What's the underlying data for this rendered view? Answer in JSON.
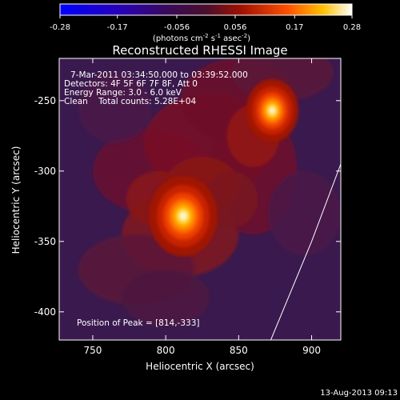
{
  "chart_data": {
    "type": "heatmap",
    "title": "Reconstructed RHESSI Image",
    "xlabel": "Heliocentric X (arcsec)",
    "ylabel": "Heliocentric Y (arcsec)",
    "xlim": [
      727,
      920
    ],
    "ylim": [
      -420,
      -220
    ],
    "xticks": [
      "750",
      "800",
      "850",
      "900"
    ],
    "yticks": [
      "-250",
      "-300",
      "-350",
      "-400"
    ],
    "colorbar": {
      "range": [
        -0.28,
        0.28
      ],
      "ticks": [
        "-0.28",
        "-0.17",
        "-0.056",
        "0.056",
        "0.17",
        "0.28"
      ],
      "unit_main": "(photons cm",
      "unit_sup1": "-2",
      "unit_mid": " s",
      "unit_sup2": "-1",
      "unit_mid2": " asec",
      "unit_sup3": "-2",
      "unit_end": ")"
    },
    "annotations": {
      "time_range": "7-Mar-2011 03:34:50.000 to 03:39:52.000",
      "detectors": "Detectors: 4F 5F 6F 7F 8F, Att 0",
      "energy": "Energy Range: 3.0 - 6.0 keV",
      "clean": "Clean    Total counts: 5.28E+04",
      "peak": "Position of Peak = [814,-333]"
    },
    "sources": [
      {
        "x": 812,
        "y": -332,
        "peak": 0.28,
        "sx": 9,
        "sy": 11
      },
      {
        "x": 873,
        "y": -257,
        "peak": 0.24,
        "sx": 8,
        "sy": 10
      }
    ],
    "limb_line": [
      [
        872,
        -420
      ],
      [
        900,
        -350
      ],
      [
        920,
        -295
      ]
    ],
    "footer": "13-Aug-2013 09:13"
  }
}
